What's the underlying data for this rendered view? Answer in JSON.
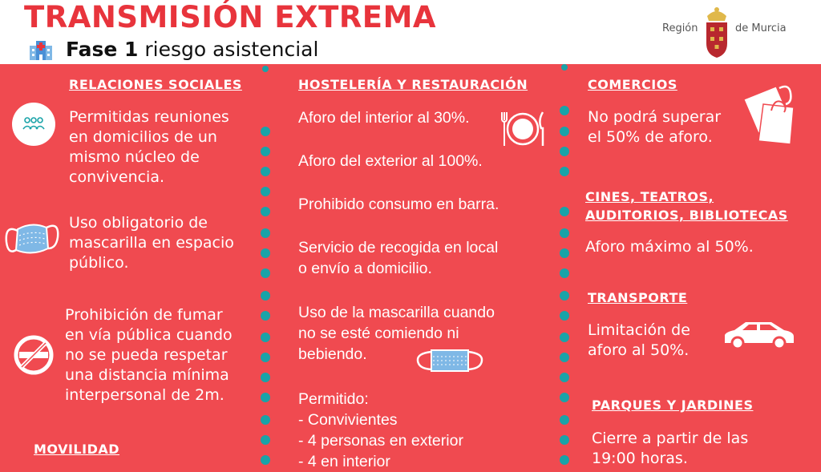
{
  "header": {
    "title": "TRANSMISIÓN EXTREMA",
    "phase_bold": "Fase 1",
    "phase_rest": " riesgo asistencial",
    "logo_left": "Región",
    "logo_right": "de Murcia"
  },
  "col1": {
    "relaciones_title": "RELACIONES SOCIALES",
    "relaciones_lines": [
      "Permitidas reuniones",
      "en domicilios de un",
      "mismo núcleo de",
      "convivencia."
    ],
    "mascarilla_lines": [
      "Uso obligatorio de",
      "mascarilla en espacio",
      "público."
    ],
    "fumar_lines": [
      "Prohibición de fumar",
      "en vía pública cuando",
      "no se pueda respetar",
      "una distancia mínima",
      "interpersonal de 2m."
    ],
    "movilidad_title": "MOVILIDAD"
  },
  "col2": {
    "hosteleria_title": "HOSTELERÍA Y RESTAURACIÓN",
    "aforo_interior": "Aforo del interior al 30%.",
    "aforo_exterior": "Aforo del exterior al 100%.",
    "barra": "Prohibido consumo en barra.",
    "servicio_lines": [
      "Servicio de recogida en local",
      "o envío a domicilio."
    ],
    "mascarilla_lines": [
      "Uso de la mascarilla cuando",
      "no se esté comiendo ni",
      "bebiendo."
    ],
    "permitido_lines": [
      "Permitido:",
      "- Convivientes",
      "- 4 personas en exterior",
      "- 4 en interior"
    ]
  },
  "col3": {
    "comercios_title": "COMERCIOS",
    "comercios_lines": [
      "No podrá superar",
      "el 50% de aforo."
    ],
    "cines_title_lines": [
      "CINES, TEATROS,",
      "AUDITORIOS, BIBLIOTECAS"
    ],
    "cines_text": "Aforo máximo al 50%.",
    "transporte_title": "TRANSPORTE",
    "transporte_lines": [
      "Limitación de",
      "aforo al 50%."
    ],
    "parques_title": "PARQUES Y JARDINES",
    "parques_lines": [
      "Cierre a partir de las",
      "19:00 horas."
    ]
  },
  "colors": {
    "background": "#f04a50",
    "title": "#e8343c",
    "teal": "#19a3a8"
  },
  "icons": [
    "hospital-icon",
    "group-icon",
    "mask-icon",
    "no-smoking-icon",
    "plate-cutlery-icon",
    "mask-icon",
    "shopping-bags-icon",
    "car-icon",
    "region-shield-logo"
  ]
}
